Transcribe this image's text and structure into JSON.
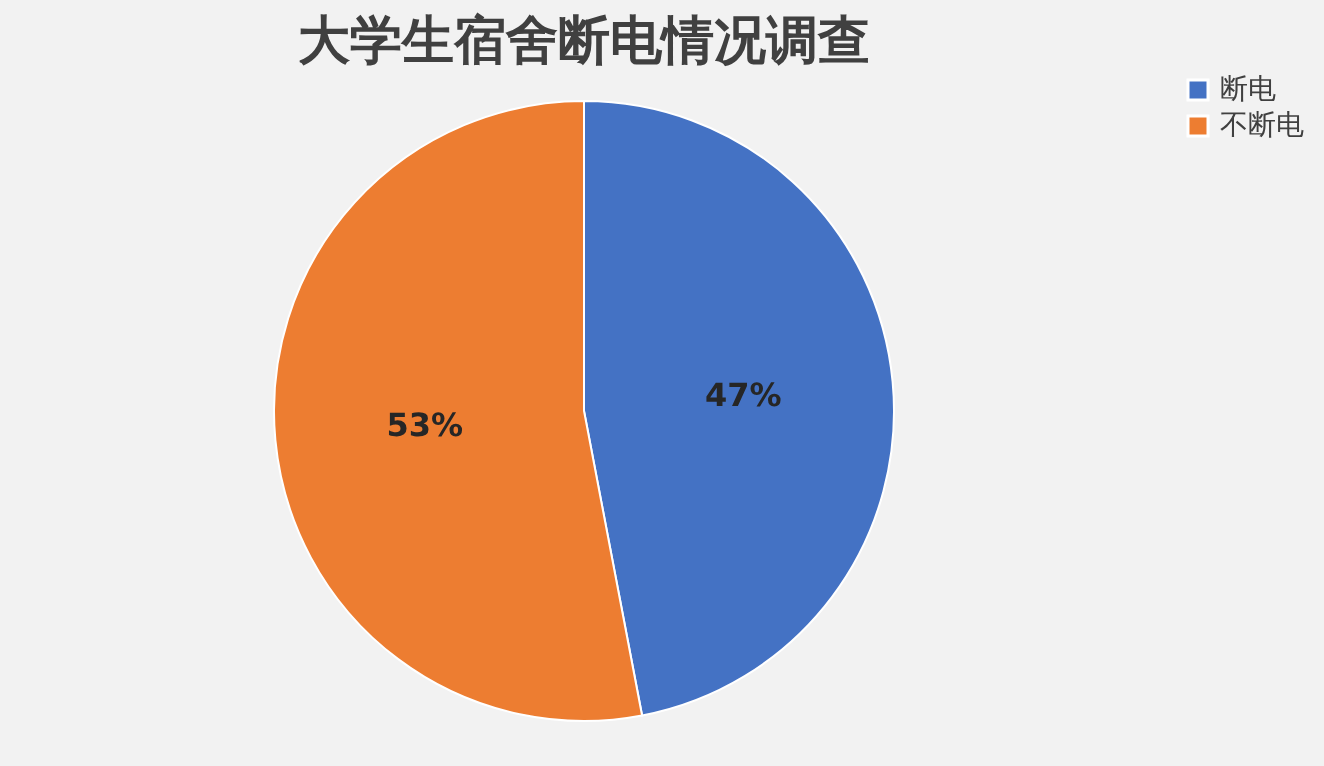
{
  "chart_data": {
    "type": "pie",
    "title": "大学生宿舍断电情况调查",
    "categories": [
      "断电",
      "不断电"
    ],
    "values": [
      47,
      53
    ],
    "colors": [
      "#4472c4",
      "#ed7d31"
    ],
    "value_labels": [
      "47%",
      "53%"
    ],
    "legend": "right"
  }
}
